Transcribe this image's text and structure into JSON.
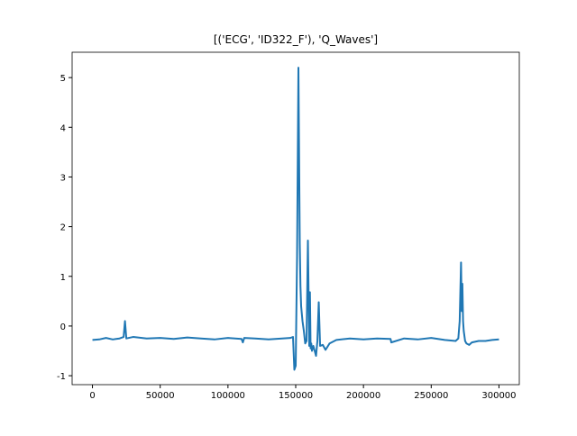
{
  "chart_data": {
    "type": "line",
    "title": "[('ECG', 'ID322_F'), 'Q_Waves']",
    "x": [
      0,
      5000,
      10000,
      15000,
      20000,
      23000,
      24000,
      25000,
      30000,
      40000,
      50000,
      60000,
      70000,
      80000,
      90000,
      100000,
      110000,
      111000,
      112000,
      120000,
      130000,
      140000,
      146000,
      148000,
      149000,
      150000,
      151000,
      152000,
      153000,
      153500,
      154000,
      155000,
      156000,
      157000,
      158000,
      159000,
      160000,
      160500,
      161000,
      161500,
      162000,
      163000,
      165000,
      166000,
      167000,
      168000,
      170000,
      172000,
      175000,
      180000,
      190000,
      200000,
      210000,
      220000,
      220500,
      230000,
      240000,
      250000,
      260000,
      268000,
      270000,
      271000,
      272000,
      272500,
      273000,
      273500,
      274000,
      275000,
      276000,
      278000,
      280000,
      285000,
      290000,
      295000,
      300000
    ],
    "series": [
      {
        "name": "Q_Waves",
        "color": "#1f77b4",
        "values": [
          -0.28,
          -0.27,
          -0.24,
          -0.27,
          -0.25,
          -0.22,
          0.1,
          -0.25,
          -0.22,
          -0.25,
          -0.24,
          -0.26,
          -0.23,
          -0.25,
          -0.27,
          -0.24,
          -0.26,
          -0.33,
          -0.24,
          -0.25,
          -0.27,
          -0.25,
          -0.24,
          -0.22,
          -0.88,
          -0.8,
          1.4,
          5.2,
          1.65,
          0.8,
          0.4,
          0.1,
          -0.1,
          -0.35,
          -0.3,
          1.72,
          -0.4,
          0.68,
          -0.45,
          -0.35,
          -0.5,
          -0.4,
          -0.6,
          -0.3,
          0.48,
          -0.4,
          -0.38,
          -0.48,
          -0.35,
          -0.28,
          -0.25,
          -0.27,
          -0.25,
          -0.26,
          -0.33,
          -0.25,
          -0.27,
          -0.24,
          -0.28,
          -0.3,
          -0.25,
          0.1,
          1.28,
          0.3,
          0.85,
          0.1,
          -0.1,
          -0.3,
          -0.35,
          -0.38,
          -0.33,
          -0.3,
          -0.3,
          -0.28,
          -0.27
        ]
      }
    ],
    "xlim": [
      -15000,
      315000
    ],
    "ylim": [
      -1.18,
      5.51
    ],
    "xticks": [
      0,
      50000,
      100000,
      150000,
      200000,
      250000,
      300000
    ],
    "yticks": [
      -1,
      0,
      1,
      2,
      3,
      4,
      5
    ]
  }
}
